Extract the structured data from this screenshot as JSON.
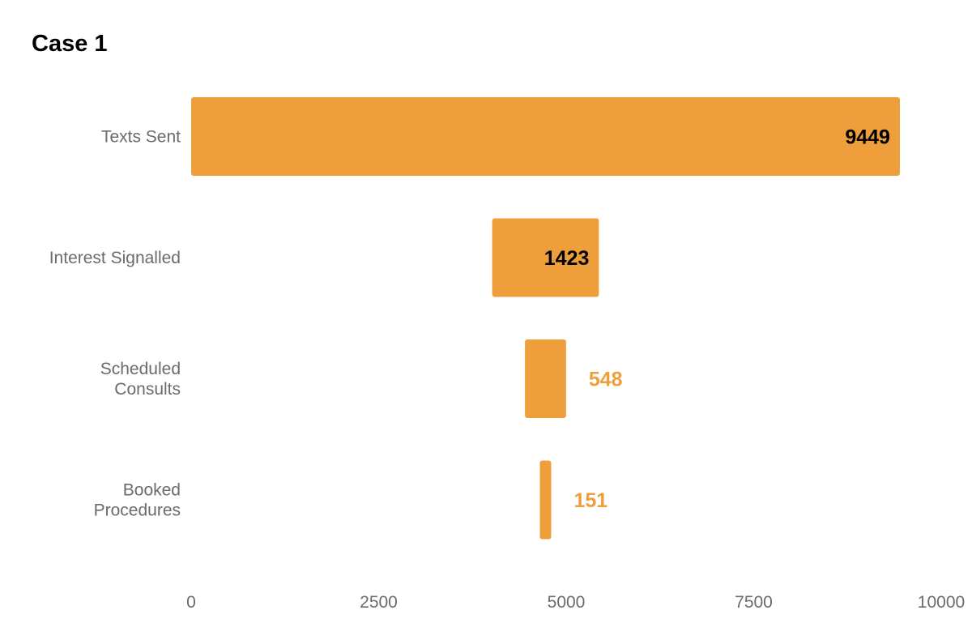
{
  "colors": {
    "bar": "#EE9F3B",
    "label_inside": "#000000",
    "label_outside": "#EE9F3B"
  },
  "chart_data": {
    "type": "bar",
    "orientation": "horizontal",
    "layout": "funnel-centered",
    "title": "Case 1",
    "categories": [
      [
        "Texts Sent"
      ],
      [
        "Interest Signalled"
      ],
      [
        "Scheduled",
        "Consults"
      ],
      [
        "Booked",
        "Procedures"
      ]
    ],
    "values": [
      9449,
      1423,
      548,
      151
    ],
    "xlim": [
      0,
      10000
    ],
    "xticks": [
      0,
      2500,
      5000,
      7500,
      10000
    ],
    "grid": false,
    "legend": "none"
  }
}
